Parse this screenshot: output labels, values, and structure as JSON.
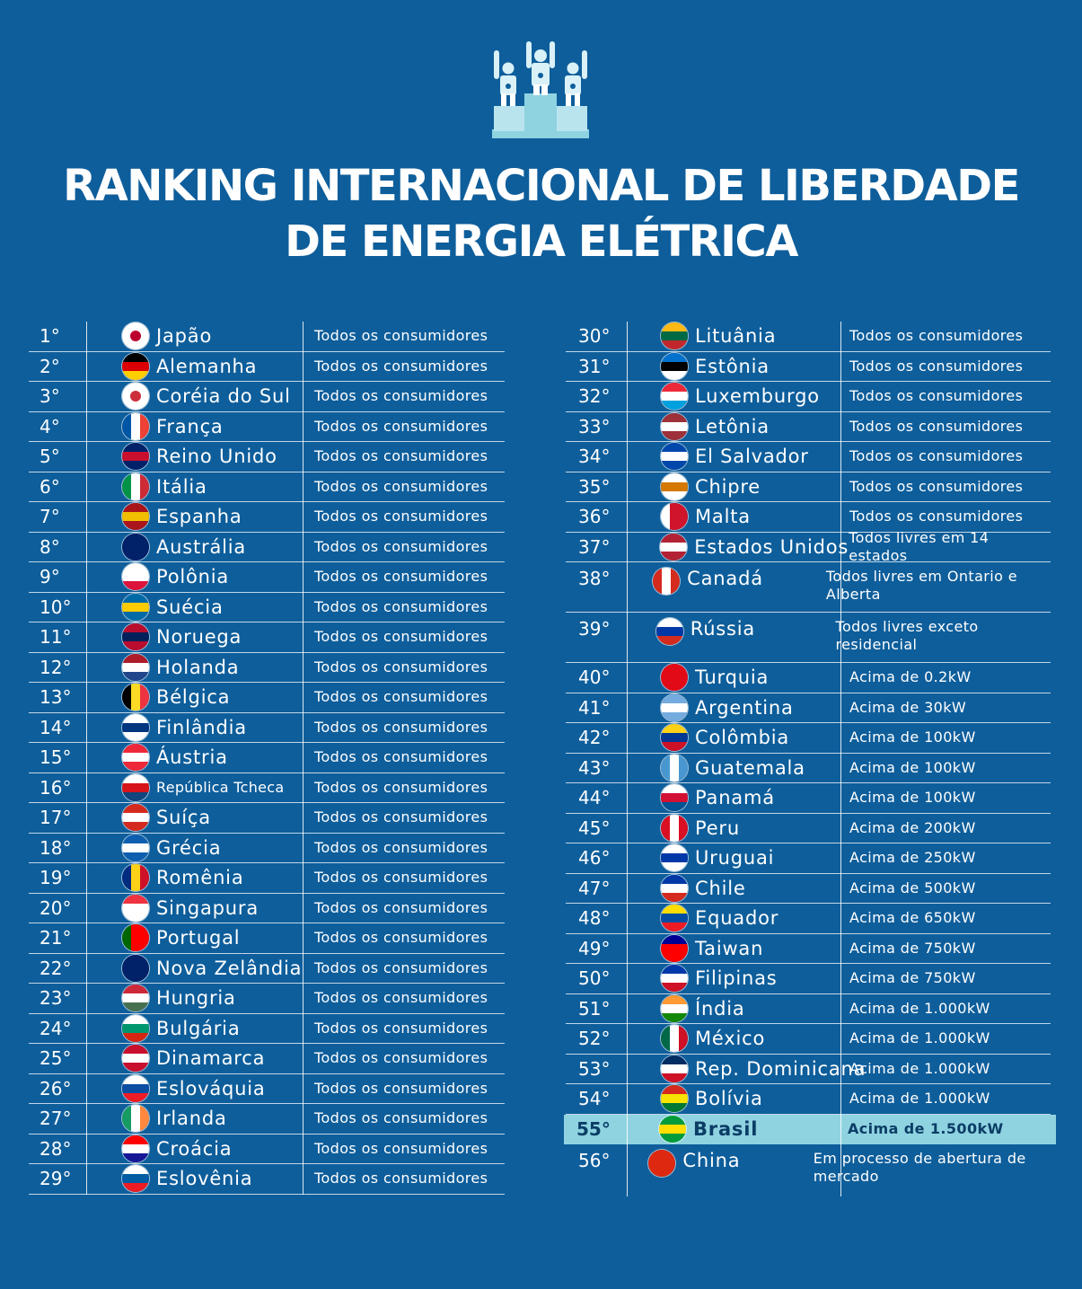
{
  "title": {
    "line1": "RANKING INTERNACIONAL DE LIBERDADE",
    "line2": "DE ENERGIA ELÉTRICA"
  },
  "podium_icon": "podium-winners-icon",
  "left": [
    {
      "rank": "1°",
      "country": "Japão",
      "status": "Todos os consumidores",
      "flag": [
        "#ffffff",
        "#ffffff",
        "#ffffff"
      ],
      "dot": "#bc002d"
    },
    {
      "rank": "2°",
      "country": "Alemanha",
      "status": "Todos os consumidores",
      "flag": [
        "#000000",
        "#dd0000",
        "#ffce00"
      ]
    },
    {
      "rank": "3°",
      "country": "Coréia do Sul",
      "status": "Todos os consumidores",
      "flag": [
        "#ffffff",
        "#ffffff",
        "#ffffff"
      ],
      "dot": "#cd2e3a"
    },
    {
      "rank": "4°",
      "country": "França",
      "status": "Todos os consumidores",
      "flagv": [
        "#0055a4",
        "#ffffff",
        "#ef4135"
      ]
    },
    {
      "rank": "5°",
      "country": "Reino Unido",
      "status": "Todos os consumidores",
      "flag": [
        "#012169",
        "#c8102e",
        "#012169"
      ]
    },
    {
      "rank": "6°",
      "country": "Itália",
      "status": "Todos os consumidores",
      "flagv": [
        "#009246",
        "#ffffff",
        "#ce2b37"
      ]
    },
    {
      "rank": "7°",
      "country": "Espanha",
      "status": "Todos os consumidores",
      "flag": [
        "#aa151b",
        "#f1bf00",
        "#aa151b"
      ]
    },
    {
      "rank": "8°",
      "country": "Austrália",
      "status": "Todos os consumidores",
      "flag": [
        "#012169",
        "#012169",
        "#012169"
      ]
    },
    {
      "rank": "9°",
      "country": "Polônia",
      "status": "Todos os consumidores",
      "flag": [
        "#ffffff",
        "#ffffff",
        "#dc143c"
      ]
    },
    {
      "rank": "10°",
      "country": "Suécia",
      "status": "Todos os consumidores",
      "flag": [
        "#006aa7",
        "#fecc00",
        "#006aa7"
      ]
    },
    {
      "rank": "11°",
      "country": "Noruega",
      "status": "Todos os consumidores",
      "flag": [
        "#ba0c2f",
        "#00205b",
        "#ba0c2f"
      ]
    },
    {
      "rank": "12°",
      "country": "Holanda",
      "status": "Todos os consumidores",
      "flag": [
        "#ae1c28",
        "#ffffff",
        "#21468b"
      ]
    },
    {
      "rank": "13°",
      "country": "Bélgica",
      "status": "Todos os consumidores",
      "flagv": [
        "#000000",
        "#fdda24",
        "#ef3340"
      ]
    },
    {
      "rank": "14°",
      "country": "Finlândia",
      "status": "Todos os consumidores",
      "flag": [
        "#ffffff",
        "#003580",
        "#ffffff"
      ]
    },
    {
      "rank": "15°",
      "country": "Áustria",
      "status": "Todos os consumidores",
      "flag": [
        "#ed2939",
        "#ffffff",
        "#ed2939"
      ]
    },
    {
      "rank": "16°",
      "country": "República Tcheca",
      "status": "Todos os consumidores",
      "flag": [
        "#ffffff",
        "#d7141a",
        "#11457e"
      ]
    },
    {
      "rank": "17°",
      "country": "Suíça",
      "status": "Todos os consumidores",
      "flag": [
        "#d52b1e",
        "#ffffff",
        "#d52b1e"
      ]
    },
    {
      "rank": "18°",
      "country": "Grécia",
      "status": "Todos os consumidores",
      "flag": [
        "#0d5eaf",
        "#ffffff",
        "#0d5eaf"
      ]
    },
    {
      "rank": "19°",
      "country": "Romênia",
      "status": "Todos os consumidores",
      "flagv": [
        "#002b7f",
        "#fcd116",
        "#ce1126"
      ]
    },
    {
      "rank": "20°",
      "country": "Singapura",
      "status": "Todos os consumidores",
      "flag": [
        "#ef3340",
        "#ffffff",
        "#ffffff"
      ]
    },
    {
      "rank": "21°",
      "country": "Portugal",
      "status": "Todos os consumidores",
      "flagv": [
        "#006600",
        "#ff0000",
        "#ff0000"
      ]
    },
    {
      "rank": "22°",
      "country": "Nova Zelândia",
      "status": "Todos os consumidores",
      "flag": [
        "#012169",
        "#012169",
        "#012169"
      ]
    },
    {
      "rank": "23°",
      "country": "Hungria",
      "status": "Todos os consumidores",
      "flag": [
        "#ce2939",
        "#ffffff",
        "#477050"
      ]
    },
    {
      "rank": "24°",
      "country": "Bulgária",
      "status": "Todos os consumidores",
      "flag": [
        "#ffffff",
        "#00966e",
        "#d62612"
      ]
    },
    {
      "rank": "25°",
      "country": "Dinamarca",
      "status": "Todos os consumidores",
      "flag": [
        "#c8102e",
        "#ffffff",
        "#c8102e"
      ]
    },
    {
      "rank": "26°",
      "country": "Eslováquia",
      "status": "Todos os consumidores",
      "flag": [
        "#ffffff",
        "#0b4ea2",
        "#ee1c25"
      ]
    },
    {
      "rank": "27°",
      "country": "Irlanda",
      "status": "Todos os consumidores",
      "flagv": [
        "#169b62",
        "#ffffff",
        "#ff883e"
      ]
    },
    {
      "rank": "28°",
      "country": "Croácia",
      "status": "Todos os consumidores",
      "flag": [
        "#ff0000",
        "#ffffff",
        "#171796"
      ]
    },
    {
      "rank": "29°",
      "country": "Eslovênia",
      "status": "Todos os consumidores",
      "flag": [
        "#ffffff",
        "#005da4",
        "#ed1c24"
      ]
    }
  ],
  "right": [
    {
      "rank": "30°",
      "country": "Lituânia",
      "status": "Todos os consumidores",
      "flag": [
        "#fdb913",
        "#006a44",
        "#c1272d"
      ]
    },
    {
      "rank": "31°",
      "country": "Estônia",
      "status": "Todos os consumidores",
      "flag": [
        "#0072ce",
        "#000000",
        "#ffffff"
      ]
    },
    {
      "rank": "32°",
      "country": "Luxemburgo",
      "status": "Todos os consumidores",
      "flag": [
        "#ed2939",
        "#ffffff",
        "#00a1de"
      ]
    },
    {
      "rank": "33°",
      "country": "Letônia",
      "status": "Todos os consumidores",
      "flag": [
        "#9e3039",
        "#ffffff",
        "#9e3039"
      ]
    },
    {
      "rank": "34°",
      "country": "El Salvador",
      "status": "Todos os consumidores",
      "flag": [
        "#0047ab",
        "#ffffff",
        "#0047ab"
      ]
    },
    {
      "rank": "35°",
      "country": "Chipre",
      "status": "Todos os consumidores",
      "flag": [
        "#ffffff",
        "#d57800",
        "#ffffff"
      ]
    },
    {
      "rank": "36°",
      "country": "Malta",
      "status": "Todos os consumidores",
      "flagv": [
        "#ffffff",
        "#cf142b",
        "#cf142b"
      ]
    },
    {
      "rank": "37°",
      "country": "Estados Unidos",
      "status": "Todos livres em 14 estados",
      "flag": [
        "#b22234",
        "#ffffff",
        "#b22234"
      ]
    },
    {
      "rank": "38°",
      "country": "Canadá",
      "status": "Todos livres em Ontario e Alberta",
      "flagv": [
        "#d52b1e",
        "#ffffff",
        "#d52b1e"
      ]
    },
    {
      "rank": "39°",
      "country": "Rússia",
      "status": "Todos livres exceto residencial",
      "flag": [
        "#ffffff",
        "#0039a6",
        "#d52b1e"
      ]
    },
    {
      "rank": "40°",
      "country": "Turquia",
      "status": "Acima de 0.2kW",
      "flag": [
        "#e30a17",
        "#e30a17",
        "#e30a17"
      ]
    },
    {
      "rank": "41°",
      "country": "Argentina",
      "status": "Acima de 30kW",
      "flag": [
        "#74acdf",
        "#ffffff",
        "#74acdf"
      ]
    },
    {
      "rank": "42°",
      "country": "Colômbia",
      "status": "Acima de 100kW",
      "flag": [
        "#fcd116",
        "#003893",
        "#ce1126"
      ]
    },
    {
      "rank": "43°",
      "country": "Guatemala",
      "status": "Acima de 100kW",
      "flagv": [
        "#4997d0",
        "#ffffff",
        "#4997d0"
      ]
    },
    {
      "rank": "44°",
      "country": "Panamá",
      "status": "Acima de 100kW",
      "flag": [
        "#ffffff",
        "#d21034",
        "#005293"
      ]
    },
    {
      "rank": "45°",
      "country": "Peru",
      "status": "Acima de 200kW",
      "flagv": [
        "#d91023",
        "#ffffff",
        "#d91023"
      ]
    },
    {
      "rank": "46°",
      "country": "Uruguai",
      "status": "Acima de 250kW",
      "flag": [
        "#ffffff",
        "#0038a8",
        "#ffffff"
      ]
    },
    {
      "rank": "47°",
      "country": "Chile",
      "status": "Acima de 500kW",
      "flag": [
        "#0039a6",
        "#ffffff",
        "#d52b1e"
      ]
    },
    {
      "rank": "48°",
      "country": "Equador",
      "status": "Acima de 650kW",
      "flag": [
        "#ffdd00",
        "#034ea2",
        "#ed1c24"
      ]
    },
    {
      "rank": "49°",
      "country": "Taiwan",
      "status": "Acima de 750kW",
      "flag": [
        "#000095",
        "#fe0000",
        "#fe0000"
      ]
    },
    {
      "rank": "50°",
      "country": "Filipinas",
      "status": "Acima de 750kW",
      "flag": [
        "#0038a8",
        "#ffffff",
        "#ce1126"
      ]
    },
    {
      "rank": "51°",
      "country": "Índia",
      "status": "Acima de 1.000kW",
      "flag": [
        "#ff9933",
        "#ffffff",
        "#138808"
      ]
    },
    {
      "rank": "52°",
      "country": "México",
      "status": "Acima de 1.000kW",
      "flagv": [
        "#006847",
        "#ffffff",
        "#ce1126"
      ]
    },
    {
      "rank": "53°",
      "country": "Rep. Dominicana",
      "status": "Acima de 1.000kW",
      "flag": [
        "#002d62",
        "#ffffff",
        "#ce1126"
      ]
    },
    {
      "rank": "54°",
      "country": "Bolívia",
      "status": "Acima de 1.000kW",
      "flag": [
        "#d52b1e",
        "#f9e300",
        "#007934"
      ]
    },
    {
      "rank": "55°",
      "country": "Brasil",
      "status": "Acima de 1.500kW",
      "flag": [
        "#009c3b",
        "#ffdf00",
        "#009c3b"
      ],
      "highlight": true
    },
    {
      "rank": "56°",
      "country": "China",
      "status": "Em processo de abertura de mercado",
      "flag": [
        "#de2910",
        "#de2910",
        "#de2910"
      ]
    }
  ],
  "colors": {
    "background": "#0e5e9b",
    "highlight": "#8fd3e1",
    "highlight_text": "#0b3d66"
  }
}
